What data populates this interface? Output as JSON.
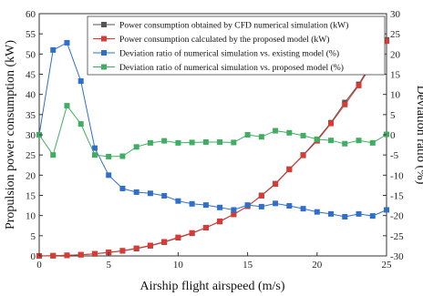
{
  "chart_data": {
    "type": "line",
    "xlabel": "Airship flight airspeed (m/s)",
    "ylabel_left": "Propulsion power consumption (kW)",
    "ylabel_right": "Deviation ratio (%)",
    "xlim": [
      0,
      25
    ],
    "ylim_left": [
      0,
      60
    ],
    "ylim_right": [
      -30,
      30
    ],
    "x_ticks": [
      0,
      5,
      10,
      15,
      20,
      25
    ],
    "y_left_ticks": [
      0,
      5,
      10,
      15,
      20,
      25,
      30,
      35,
      40,
      45,
      50,
      55,
      60
    ],
    "y_right_ticks": [
      -30,
      -25,
      -20,
      -15,
      -10,
      -5,
      0,
      5,
      10,
      15,
      20,
      25,
      30
    ],
    "grid": false,
    "legend_position": "top-right",
    "series": [
      {
        "name": "Power consumption obtained by CFD numerical simulation (kW)",
        "axis": "left",
        "color": "#555555",
        "marker": "square",
        "x": [
          0,
          1,
          2,
          3,
          4,
          5,
          6,
          7,
          8,
          9,
          10,
          11,
          12,
          13,
          14,
          15,
          16,
          17,
          18,
          19,
          20,
          21,
          22,
          23,
          24,
          25
        ],
        "values": [
          0.01,
          0.05,
          0.15,
          0.3,
          0.5,
          0.85,
          1.25,
          1.8,
          2.5,
          3.4,
          4.5,
          5.6,
          7.0,
          8.5,
          10.3,
          12.3,
          15.0,
          17.9,
          21.5,
          25.0,
          28.8,
          33.0,
          38.0,
          42.5,
          48.3,
          53.5
        ]
      },
      {
        "name": "Power consumption calculated by the proposed model (kW)",
        "axis": "left",
        "color": "#d93a35",
        "marker": "square",
        "x": [
          0,
          1,
          2,
          3,
          4,
          5,
          6,
          7,
          8,
          9,
          10,
          11,
          12,
          13,
          14,
          15,
          16,
          17,
          18,
          19,
          20,
          21,
          22,
          23,
          24,
          25
        ],
        "values": [
          0.01,
          0.05,
          0.15,
          0.3,
          0.55,
          0.9,
          1.3,
          1.9,
          2.6,
          3.5,
          4.6,
          5.7,
          7.0,
          8.6,
          10.3,
          12.3,
          14.9,
          17.8,
          21.4,
          24.9,
          28.5,
          32.8,
          37.5,
          42.2,
          47.7,
          53.2
        ]
      },
      {
        "name": "Deviation ratio of numerical simulation vs. existing model (%)",
        "axis": "right",
        "color": "#2f6fc9",
        "marker": "square",
        "x": [
          0,
          1,
          2,
          3,
          4,
          5,
          6,
          7,
          8,
          9,
          10,
          11,
          12,
          13,
          14,
          15,
          16,
          17,
          18,
          19,
          20,
          21,
          22,
          23,
          24,
          25
        ],
        "values": [
          0,
          21,
          22.8,
          13.3,
          -3.3,
          -10,
          -13.3,
          -14.2,
          -14.5,
          -15.1,
          -16.4,
          -17.1,
          -17.4,
          -18,
          -18.6,
          -17.4,
          -17.8,
          -17,
          -17.6,
          -18.3,
          -19.1,
          -19.6,
          -20.3,
          -19.6,
          -20.1,
          -18.6
        ]
      },
      {
        "name": "Deviation ratio of numerical simulation vs. proposed model (%)",
        "axis": "right",
        "color": "#3fae62",
        "marker": "square",
        "x": [
          0,
          1,
          2,
          3,
          4,
          5,
          6,
          7,
          8,
          9,
          10,
          11,
          12,
          13,
          14,
          15,
          16,
          17,
          18,
          19,
          20,
          21,
          22,
          23,
          24,
          25
        ],
        "values": [
          0,
          -5,
          7.2,
          2.7,
          -5,
          -5.4,
          -5.3,
          -3,
          -2,
          -1.5,
          -2,
          -1.9,
          -1.8,
          -1.8,
          -1.9,
          0,
          -0.5,
          1,
          0.5,
          -0.2,
          -1.1,
          -1.4,
          -2.2,
          -1.4,
          -2,
          0.1
        ]
      }
    ]
  }
}
